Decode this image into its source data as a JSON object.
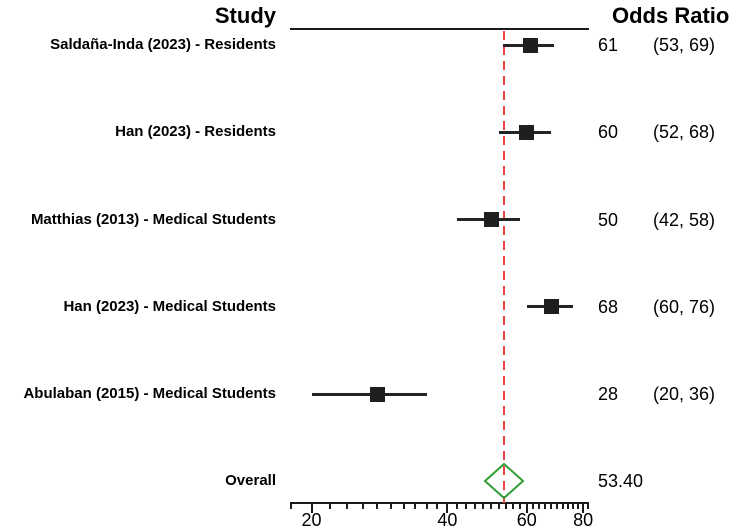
{
  "header": {
    "study_col": "Study",
    "odds_ratio_col": "Odds Ratio"
  },
  "chart_data": {
    "type": "forest",
    "x_axis": {
      "scale": "log",
      "range": [
        18,
        82
      ],
      "major_ticks": [
        20,
        40,
        60,
        80
      ],
      "major_tick_labels": [
        "20",
        "40",
        "60",
        "80"
      ],
      "minor_tick_step": 2
    },
    "reference_line": {
      "value": 53.4,
      "style": "dashed"
    },
    "studies": [
      {
        "label": "Saldaña-Inda (2023) - Residents",
        "estimate": 61,
        "ci_lower": 53,
        "ci_upper": 69,
        "estimate_text": "61",
        "ci_text": "(53, 69)"
      },
      {
        "label": "Han (2023) - Residents",
        "estimate": 60,
        "ci_lower": 52,
        "ci_upper": 68,
        "estimate_text": "60",
        "ci_text": "(52, 68)"
      },
      {
        "label": "Matthias (2013) - Medical Students",
        "estimate": 50,
        "ci_lower": 42,
        "ci_upper": 58,
        "estimate_text": "50",
        "ci_text": "(42, 58)"
      },
      {
        "label": "Han (2023) - Medical Students",
        "estimate": 68,
        "ci_lower": 60,
        "ci_upper": 76,
        "estimate_text": "68",
        "ci_text": "(60, 76)"
      },
      {
        "label": "Abulaban (2015) - Medical Students",
        "estimate": 28,
        "ci_lower": 20,
        "ci_upper": 36,
        "estimate_text": "28",
        "ci_text": "(20, 36)"
      }
    ],
    "overall": {
      "label": "Overall",
      "estimate": 53.4,
      "estimate_text": "53.40"
    }
  },
  "colors": {
    "text": "#000000",
    "axis": "#1a1a1a",
    "marker": "#1f1f1f",
    "ci_line": "#242424",
    "reference_line": "#ee4444",
    "overall_diamond": "#2f9e33"
  }
}
